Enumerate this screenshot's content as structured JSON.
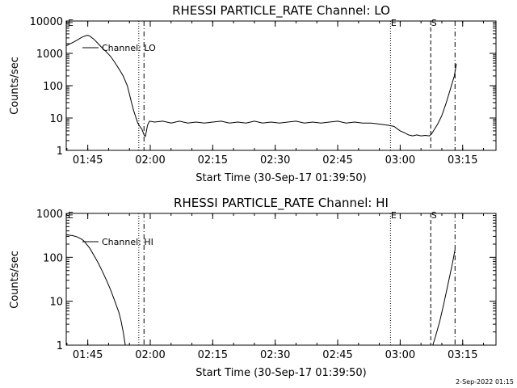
{
  "chart_data": [
    {
      "type": "line",
      "title": "RHESSI PARTICLE_RATE Channel: LO",
      "xlabel": "Start Time (30-Sep-17 01:39:50)",
      "ylabel": "Counts/sec",
      "yscale": "log",
      "ylim": [
        1,
        10000
      ],
      "xlim": [
        "01:39:50",
        "03:23:00"
      ],
      "x_ticks": [
        "01:45",
        "02:00",
        "02:15",
        "02:30",
        "02:45",
        "03:00",
        "03:15"
      ],
      "y_ticks": [
        "1",
        "10",
        "100",
        "1000",
        "10000"
      ],
      "legend": {
        "label": "Channel: LO",
        "position": "top-left"
      },
      "markers": [
        {
          "label": "E",
          "time": "01:39:50",
          "style": "none"
        },
        {
          "label": "",
          "time": "01:57:15",
          "style": "dotted"
        },
        {
          "label": "",
          "time": "01:58:30",
          "style": "dashdot"
        },
        {
          "label": "E",
          "time": "02:57:40",
          "style": "dotted"
        },
        {
          "label": "S",
          "time": "03:07:20",
          "style": "dashed"
        },
        {
          "label": "",
          "time": "03:13:10",
          "style": "dashdot"
        }
      ],
      "series": [
        {
          "name": "Channel: LO",
          "x": [
            "01:39:50",
            "01:40:30",
            "01:41:30",
            "01:42:30",
            "01:43:30",
            "01:44:30",
            "01:45:00",
            "01:45:30",
            "01:46:30",
            "01:47:30",
            "01:48:30",
            "01:49:30",
            "01:50:30",
            "01:51:30",
            "01:52:30",
            "01:53:30",
            "01:54:30",
            "01:55:00",
            "01:55:30",
            "01:56:00",
            "01:56:30",
            "01:57:00",
            "01:57:30",
            "01:58:00",
            "01:58:30",
            "01:58:50",
            "01:59:20",
            "01:59:50",
            "02:01:00",
            "02:03:00",
            "02:05:00",
            "02:07:00",
            "02:09:00",
            "02:11:00",
            "02:13:00",
            "02:15:00",
            "02:17:00",
            "02:19:00",
            "02:21:00",
            "02:23:00",
            "02:25:00",
            "02:27:00",
            "02:29:00",
            "02:31:00",
            "02:33:00",
            "02:35:00",
            "02:37:00",
            "02:39:00",
            "02:41:00",
            "02:43:00",
            "02:45:00",
            "02:47:00",
            "02:49:00",
            "02:51:00",
            "02:53:00",
            "02:55:00",
            "02:57:00",
            "02:58:30",
            "03:00:00",
            "03:01:00",
            "03:02:00",
            "03:03:00",
            "03:04:00",
            "03:05:00",
            "03:06:00",
            "03:07:00",
            "03:07:30",
            "03:08:00",
            "03:09:00",
            "03:10:00",
            "03:11:00",
            "03:12:00",
            "03:13:00",
            "03:13:30"
          ],
          "y": [
            1700,
            1900,
            2200,
            2600,
            3100,
            3500,
            3600,
            3400,
            2700,
            2000,
            1450,
            1100,
            800,
            520,
            330,
            200,
            100,
            55,
            30,
            17,
            11,
            7,
            5.5,
            4.5,
            3,
            2.7,
            6,
            8,
            7.5,
            8,
            7,
            8,
            7,
            7.5,
            7,
            7.5,
            8,
            7,
            7.5,
            7,
            8,
            7,
            7.5,
            7,
            7.5,
            8,
            7,
            7.5,
            7,
            7.5,
            8,
            7,
            7.5,
            7,
            7,
            6.5,
            6,
            5.5,
            4,
            3.5,
            3,
            2.8,
            3,
            2.8,
            2.9,
            2.8,
            3.2,
            4,
            6.5,
            12,
            28,
            75,
            200,
            480
          ]
        }
      ]
    },
    {
      "type": "line",
      "title": "RHESSI PARTICLE_RATE Channel: HI",
      "xlabel": "Start Time (30-Sep-17 01:39:50)",
      "ylabel": "Counts/sec",
      "yscale": "log",
      "ylim": [
        1,
        1000
      ],
      "xlim": [
        "01:39:50",
        "03:23:00"
      ],
      "x_ticks": [
        "01:45",
        "02:00",
        "02:15",
        "02:30",
        "02:45",
        "03:00",
        "03:15"
      ],
      "y_ticks": [
        "1",
        "10",
        "100",
        "1000"
      ],
      "legend": {
        "label": "Channel: HI",
        "position": "top-left"
      },
      "markers": [
        {
          "label": "E",
          "time": "01:39:50",
          "style": "none"
        },
        {
          "label": "",
          "time": "01:57:15",
          "style": "dotted"
        },
        {
          "label": "",
          "time": "01:58:30",
          "style": "dashdot"
        },
        {
          "label": "E",
          "time": "02:57:40",
          "style": "dotted"
        },
        {
          "label": "S",
          "time": "03:07:20",
          "style": "dashed"
        },
        {
          "label": "",
          "time": "03:13:10",
          "style": "dashdot"
        }
      ],
      "series": [
        {
          "name": "Channel: HI",
          "x": [
            "01:39:50",
            "01:40:30",
            "01:41:30",
            "01:42:30",
            "01:43:30",
            "01:44:00",
            "01:44:30",
            "01:45:30",
            "01:46:30",
            "01:47:30",
            "01:48:30",
            "01:49:30",
            "01:50:30",
            "01:51:30",
            "01:52:30",
            "01:53:00",
            "01:53:30",
            "01:54:00"
          ],
          "y": [
            330,
            320,
            310,
            290,
            260,
            240,
            210,
            160,
            110,
            75,
            48,
            30,
            18,
            10,
            5.5,
            3.5,
            2,
            1
          ]
        },
        {
          "name": "Channel: HI",
          "x": [
            "03:07:50",
            "03:08:30",
            "03:09:30",
            "03:10:30",
            "03:11:30",
            "03:12:30",
            "03:13:10"
          ],
          "y": [
            1,
            1.6,
            3.5,
            9,
            25,
            70,
            150
          ]
        }
      ]
    }
  ],
  "footer": {
    "timestamp": "2-Sep-2022 01:15"
  }
}
